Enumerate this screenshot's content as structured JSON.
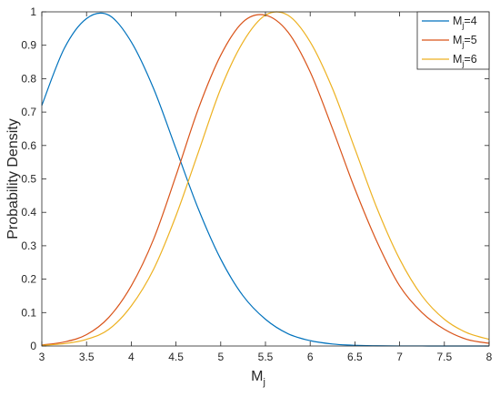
{
  "chart_data": {
    "type": "line",
    "title": "",
    "xlabel": "M",
    "xlabel_sub": "j",
    "ylabel": "Probability Density",
    "xlim": [
      3,
      8
    ],
    "ylim": [
      0,
      1
    ],
    "x_ticks": [
      "3",
      "3.5",
      "4",
      "4.5",
      "5",
      "5.5",
      "6",
      "6.5",
      "7",
      "7.5",
      "8"
    ],
    "y_ticks": [
      "0",
      "0.1",
      "0.2",
      "0.3",
      "0.4",
      "0.5",
      "0.6",
      "0.7",
      "0.8",
      "0.9",
      "1"
    ],
    "grid": false,
    "legend_position": "top-right",
    "x": [
      3.0,
      3.25,
      3.5,
      3.75,
      4.0,
      4.25,
      4.5,
      4.75,
      5.0,
      5.25,
      5.5,
      5.75,
      6.0,
      6.25,
      6.5,
      6.75,
      7.0,
      7.25,
      7.5,
      7.75,
      8.0
    ],
    "series": [
      {
        "name": "M",
        "name_sub": "j",
        "name_suffix": "=4",
        "color": "#0072BD",
        "values": [
          0.72,
          0.89,
          0.98,
          0.99,
          0.91,
          0.77,
          0.59,
          0.41,
          0.26,
          0.15,
          0.08,
          0.037,
          0.016,
          0.006,
          0.002,
          0.0007,
          0.0002,
          0.0001,
          0.0,
          0.0,
          0.0
        ]
      },
      {
        "name": "M",
        "name_sub": "j",
        "name_suffix": "=5",
        "color": "#D95319",
        "values": [
          0.003,
          0.012,
          0.034,
          0.086,
          0.18,
          0.32,
          0.51,
          0.71,
          0.87,
          0.97,
          0.99,
          0.94,
          0.82,
          0.65,
          0.47,
          0.31,
          0.18,
          0.1,
          0.05,
          0.02,
          0.008
        ]
      },
      {
        "name": "M",
        "name_sub": "j",
        "name_suffix": "=6",
        "color": "#EDB120",
        "values": [
          0.002,
          0.007,
          0.02,
          0.05,
          0.12,
          0.23,
          0.39,
          0.58,
          0.77,
          0.91,
          0.99,
          0.99,
          0.91,
          0.77,
          0.59,
          0.41,
          0.26,
          0.15,
          0.08,
          0.04,
          0.02
        ]
      }
    ]
  }
}
